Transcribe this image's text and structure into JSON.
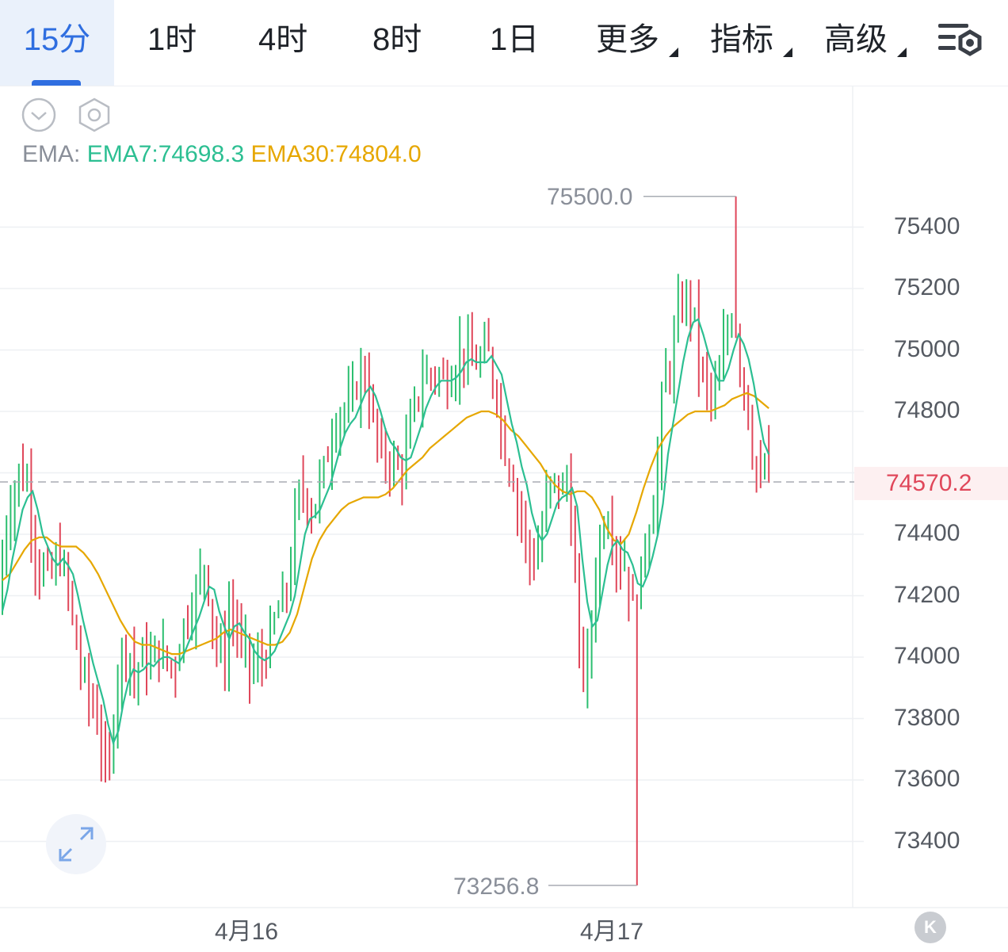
{
  "tabs": [
    {
      "label": "15分",
      "active": true
    },
    {
      "label": "1时"
    },
    {
      "label": "4时"
    },
    {
      "label": "8时"
    },
    {
      "label": "1日"
    },
    {
      "label": "更多",
      "dropdown": true
    },
    {
      "label": "指标",
      "dropdown": true
    },
    {
      "label": "高级",
      "dropdown": true
    }
  ],
  "icons": {
    "settings": "chart-settings-icon",
    "collapse": "chevron-down-icon",
    "indicator_settings": "hexagon-gear-icon",
    "expand": "expand-arrows-icon",
    "scroll_latest": "scroll-to-latest-icon"
  },
  "indicator": {
    "label": "EMA:",
    "ema7": "EMA7:74698.3",
    "ema30": "EMA30:74804.0"
  },
  "current_price": "74570.2",
  "colors": {
    "up": "#2cbf70",
    "down": "#e0475a",
    "ema7": "#2cbf92",
    "ema30": "#e6a700",
    "accent": "#2f6ee0"
  },
  "scroll_button_label": "K",
  "chart_data": {
    "type": "candlestick",
    "interval": "15分",
    "y_axis": {
      "ticks": [
        75400,
        75200,
        75000,
        74800,
        74400,
        74200,
        74000,
        73800,
        73600,
        73400
      ],
      "range": [
        73256.8,
        75500.0
      ]
    },
    "x_axis": {
      "labels": [
        {
          "text": "4月16",
          "index": 65
        },
        {
          "text": "4月17",
          "index": 161
        }
      ]
    },
    "high_marker": {
      "label": "75500.0",
      "value": 75500.0,
      "index": 178
    },
    "low_marker": {
      "label": "73256.8",
      "value": 73256.8,
      "index": 154
    },
    "last_price": 74570.2,
    "series": [
      {
        "name": "EMA7",
        "values": [
          74150,
          74220,
          74320,
          74400,
          74480,
          74520,
          74540,
          74480,
          74400,
          74360,
          74320,
          74300,
          74320,
          74300,
          74270,
          74200,
          74120,
          74050,
          73980,
          73920,
          73860,
          73780,
          73720,
          73760,
          73850,
          73920,
          73960,
          73950,
          73960,
          73980,
          73970,
          73990,
          74000,
          74000,
          73990,
          73980,
          74010,
          74050,
          74090,
          74130,
          74180,
          74230,
          74220,
          74150,
          74100,
          74060,
          74100,
          74110,
          74080,
          74060,
          74020,
          74000,
          73990,
          74000,
          74020,
          74060,
          74100,
          74140,
          74200,
          74300,
          74400,
          74450,
          74460,
          74480,
          74520,
          74560,
          74620,
          74680,
          74730,
          74760,
          74780,
          74820,
          74860,
          74880,
          74850,
          74800,
          74740,
          74700,
          74680,
          74650,
          74640,
          74650,
          74700,
          74750,
          74810,
          74850,
          74880,
          74900,
          74900,
          74900,
          74910,
          74930,
          74960,
          74970,
          74960,
          74960,
          74960,
          74980,
          74950,
          74920,
          74840,
          74760,
          74700,
          74620,
          74560,
          74470,
          74410,
          74380,
          74400,
          74450,
          74500,
          74520,
          74530,
          74550,
          74490,
          74320,
          74180,
          74100,
          74120,
          74210,
          74300,
          74360,
          74380,
          74350,
          74340,
          74300,
          74240,
          74230,
          74270,
          74330,
          74400,
          74500,
          74660,
          74760,
          74860,
          74960,
          75040,
          75090,
          75100,
          75050,
          74990,
          74940,
          74900,
          74900,
          74940,
          75000,
          75050,
          75020,
          74970,
          74890,
          74790,
          74700,
          74660
        ]
      },
      {
        "name": "EMA30",
        "values": [
          74250,
          74270,
          74310,
          74350,
          74380,
          74390,
          74390,
          74370,
          74360,
          74360,
          74360,
          74340,
          74310,
          74270,
          74220,
          74170,
          74120,
          74080,
          74050,
          74040,
          74040,
          74030,
          74020,
          74010,
          74010,
          74020,
          74030,
          74040,
          74050,
          74060,
          74080,
          74090,
          74080,
          74070,
          74060,
          74050,
          74040,
          74040,
          74050,
          74080,
          74140,
          74230,
          74320,
          74380,
          74420,
          74450,
          74480,
          74500,
          74510,
          74520,
          74520,
          74520,
          74530,
          74550,
          74580,
          74610,
          74630,
          74650,
          74680,
          74700,
          74720,
          74740,
          74760,
          74780,
          74790,
          74800,
          74800,
          74790,
          74770,
          74740,
          74720,
          74690,
          74660,
          74630,
          74590,
          74560,
          74540,
          74530,
          74540,
          74540,
          74520,
          74480,
          74420,
          74380,
          74370,
          74400,
          74470,
          74550,
          74620,
          74680,
          74720,
          74750,
          74770,
          74790,
          74800,
          74800,
          74800,
          74810,
          74820,
          74840,
          74850,
          74860,
          74850,
          74830,
          74810
        ]
      }
    ]
  }
}
